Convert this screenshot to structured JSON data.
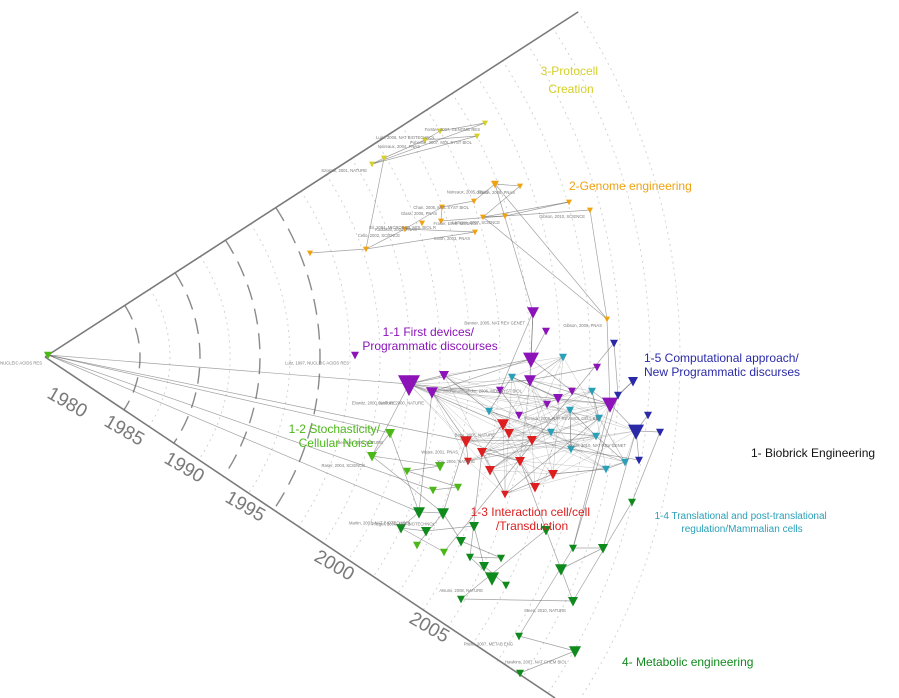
{
  "colors": {
    "protocell": "#d4cf2a",
    "genome": "#f0a20f",
    "first_devices": "#8b13b8",
    "stochasticity": "#4cb818",
    "interaction": "#dd1f1f",
    "computational": "#2a2aa8",
    "translational": "#2aa0b8",
    "biobrick": "#111111",
    "metabolic": "#0f8a1c",
    "axis": "#7a7a7a",
    "edge": "#555555"
  },
  "clusters": [
    {
      "key": "protocell",
      "lines": [
        "3-Protocell",
        "Creation"
      ],
      "color": "#d4cf2a"
    },
    {
      "key": "genome",
      "lines": [
        "2-Genome engineering"
      ],
      "color": "#f0a20f"
    },
    {
      "key": "first_devices",
      "lines": [
        "1-1 First devices/",
        "Programmatic discourses"
      ],
      "color": "#8b13b8"
    },
    {
      "key": "computational",
      "lines": [
        "1-5 Computational approach/",
        "New Programmatic discurses"
      ],
      "color": "#2a2aa8"
    },
    {
      "key": "stochasticity",
      "lines": [
        "1-2 Stochasticity/",
        "Cellular Noise"
      ],
      "color": "#4cb818"
    },
    {
      "key": "biobrick",
      "lines": [
        "1- Biobrick Engineering"
      ],
      "color": "#111111"
    },
    {
      "key": "interaction",
      "lines": [
        "1-3 Interaction cell/cell",
        "/Transduction"
      ],
      "color": "#dd1f1f"
    },
    {
      "key": "translational",
      "lines": [
        "1-4  Translational and post-translational",
        "regulation/Mammalian cells"
      ],
      "color": "#2aa0b8"
    },
    {
      "key": "metabolic",
      "lines": [
        "4- Metabolic engineering"
      ],
      "color": "#0f8a1c"
    }
  ],
  "years": [
    "1980",
    "1985",
    "1990",
    "1995",
    "2000",
    "2005"
  ],
  "node_labels": [
    "Mitchell, 1977, NUCLEIC ACIDS RES",
    "Luisi, 2006, NAT BIOTECHNOL",
    "Forster, 2007, GENOME RES",
    "Noireaux, 2004, PNAS",
    "Pohorille, 2007, MOL SYST BIOL",
    "Szostak, 2001, NATURE",
    "Noireaux, 2005, PNAS",
    "Gibson, 2008, PNAS",
    "Chan, 2005, MOL SYST BIOL",
    "Glass, 2006, PNAS",
    "Gil, 2004, MICROBIOL MOL BIOL R",
    "Lartigue, 2007, SCIENCE",
    "Fraser, 1995, SCIENCE",
    "Gibson, 2010, SCIENCE",
    "Smith, 2003, PNAS",
    "Cello, 2002, SCIENCE",
    "Kodumal, 2004, PNAS",
    "Endy, 2005, NATURE",
    "Benner, 2005, NAT REV GENET",
    "Gibson, 2009, PNAS",
    "Lutz, 1997, NUCLEIC ACIDS RES",
    "Elowitz, 2000, NATURE",
    "Gardner, 2000, NATURE",
    "Andrianantoandro, 2006, MOL SYST BIOL",
    "Purnick, 2009, NAT REV MOL CELL BIO",
    "Khalil, 2010, NAT REV GENET",
    "Elowitz, 2002, SCIENCE",
    "Ozbudak, 2002, NAT GENET",
    "Basu, 2005, NATURE",
    "Weiss, 2001, PNAS",
    "You, 2004, NATURE",
    "Becskei, 2000, NATURE",
    "Raser, 2004, SCIENCE",
    "Anderson, 2006, J MOL BIOL",
    "Isaacs, 2004, NAT BIOTECHNOL",
    "Levskaya, 2005, NATURE",
    "Tabor, 2009, CELL",
    "Deans, 2007, CELL",
    "Rinaudo, 2007, NAT BIOTECHNOL",
    "Kramer, 2004, NAT BIOTECHNOL",
    "Win, 2008, SCIENCE",
    "Dueber, 2009, NAT BIOTECHNOL",
    "Keasling, 2008, ACS CHEM BIOL",
    "Ro, 2006, NATURE",
    "Martin, 2003, NAT BIOTECHNOL",
    "Pfleger, 2006, NAT BIOTECHNOL",
    "Atsumi, 2008, NATURE",
    "Steen, 2010, NATURE",
    "Pitera, 2007, METAB ENG",
    "Hawkins, 2007, NAT CHEM BIOL",
    "Sprinzak, 2005, NATURE",
    "Bayer, 2005, NAT BIOTECHNOL",
    "Tigges, 2009, NATURE",
    "Stricker, 2008, NATURE",
    "Mutalik, 2013, NAT METHODS",
    "Kosuri, 2010, PNAS",
    "Bashor, 2008, SCIENCE",
    "Ellis, 2009, NAT BIOTECHNOL",
    "Wang, 2009, NATURE",
    "Danino, 2010, NATURE",
    "Friedland, 2009, SCIENCE",
    "Canton, 2008, NAT BIOTECHNOL",
    "Shetty, 2008, J BIOL ENG",
    "Voigt, 2006, CURR OPIN BIOTECH",
    "Salis, 2009, NAT BIOTECHNOL"
  ]
}
